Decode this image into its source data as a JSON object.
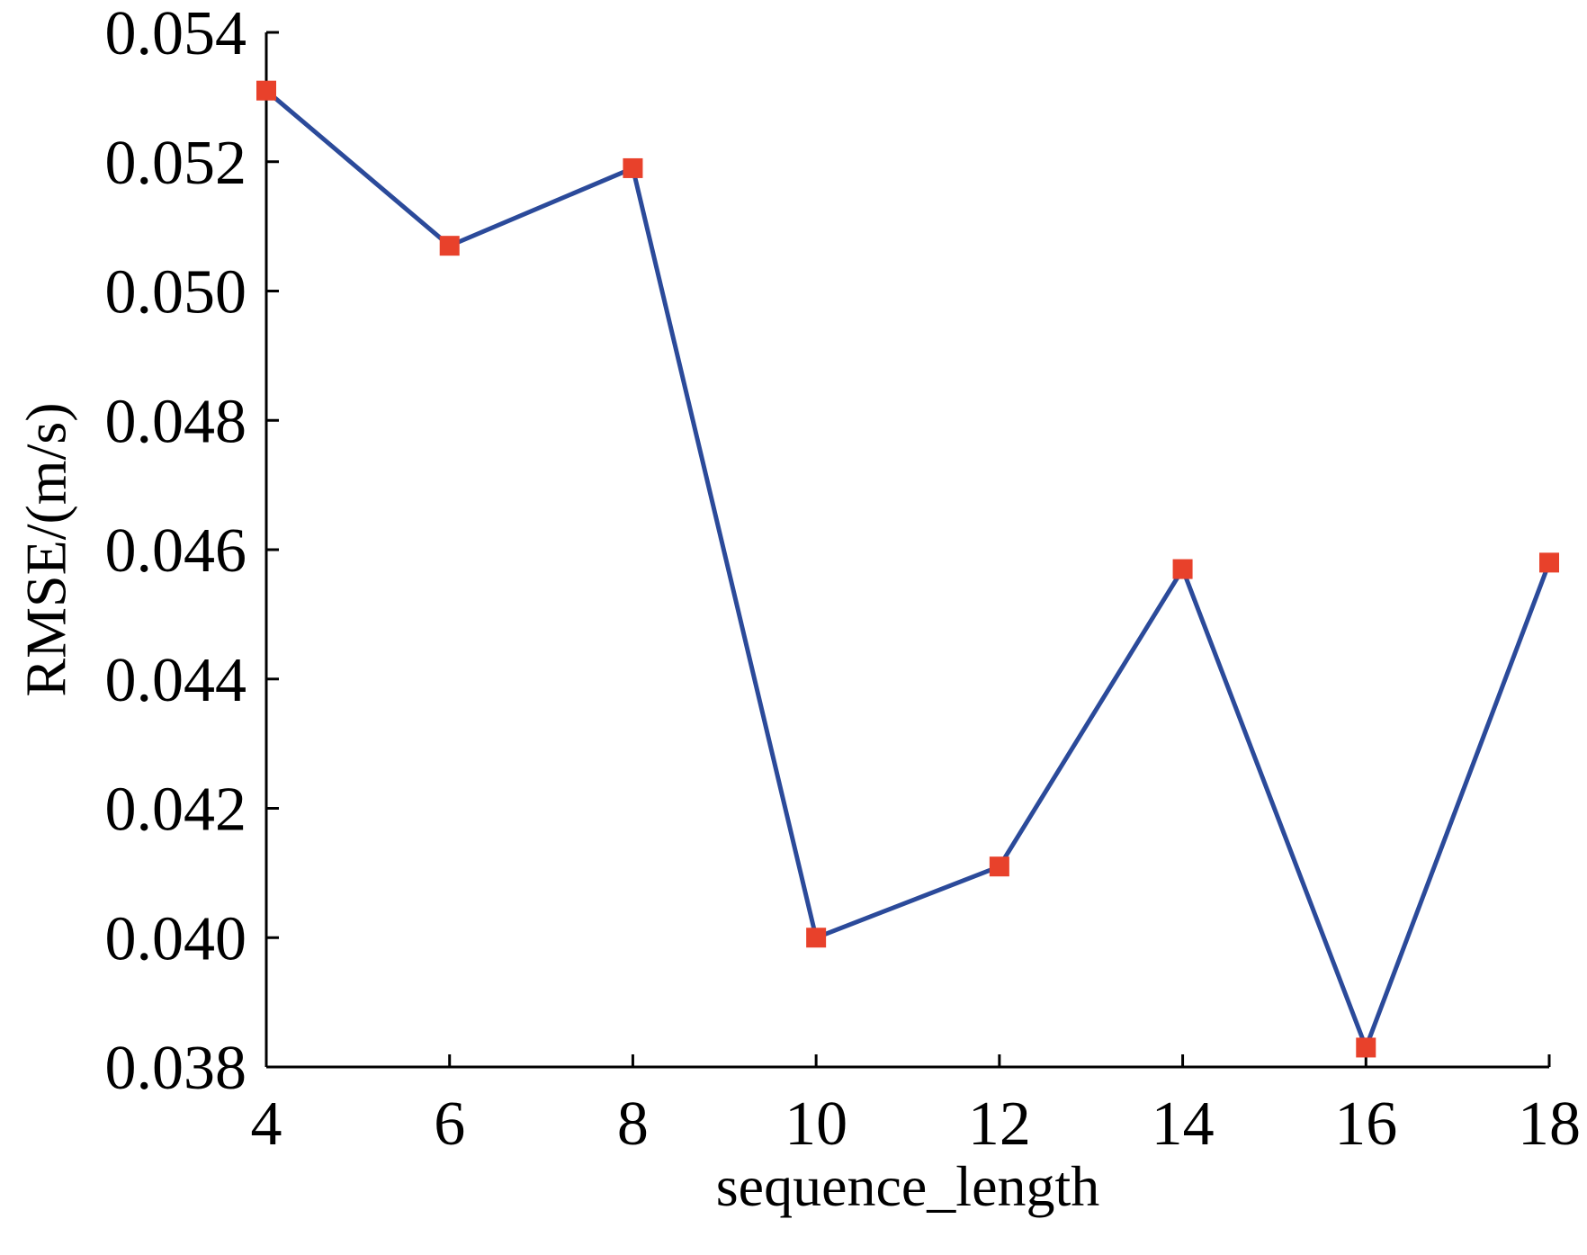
{
  "chart_data": {
    "type": "line",
    "title": "",
    "xlabel": "sequence_length",
    "ylabel": "RMSE/(m/s)",
    "xlim": [
      4,
      18
    ],
    "ylim": [
      0.038,
      0.054
    ],
    "x_ticks": [
      4,
      6,
      8,
      10,
      12,
      14,
      16,
      18
    ],
    "x_tick_labels": [
      "4",
      "6",
      "8",
      "10",
      "12",
      "14",
      "16",
      "18"
    ],
    "y_ticks": [
      0.038,
      0.04,
      0.042,
      0.044,
      0.046,
      0.048,
      0.05,
      0.052,
      0.054
    ],
    "y_tick_labels": [
      "0.038",
      "0.040",
      "0.042",
      "0.044",
      "0.046",
      "0.048",
      "0.050",
      "0.052",
      "0.054"
    ],
    "grid": false,
    "legend": false,
    "series": [
      {
        "x": [
          4,
          6,
          8,
          10,
          12,
          14,
          16,
          18
        ],
        "values": [
          0.0531,
          0.0507,
          0.0519,
          0.04,
          0.0411,
          0.0457,
          0.0383,
          0.0458
        ],
        "line_color": "#2b4a9a",
        "marker": "square",
        "marker_color": "#e8412b"
      }
    ]
  }
}
